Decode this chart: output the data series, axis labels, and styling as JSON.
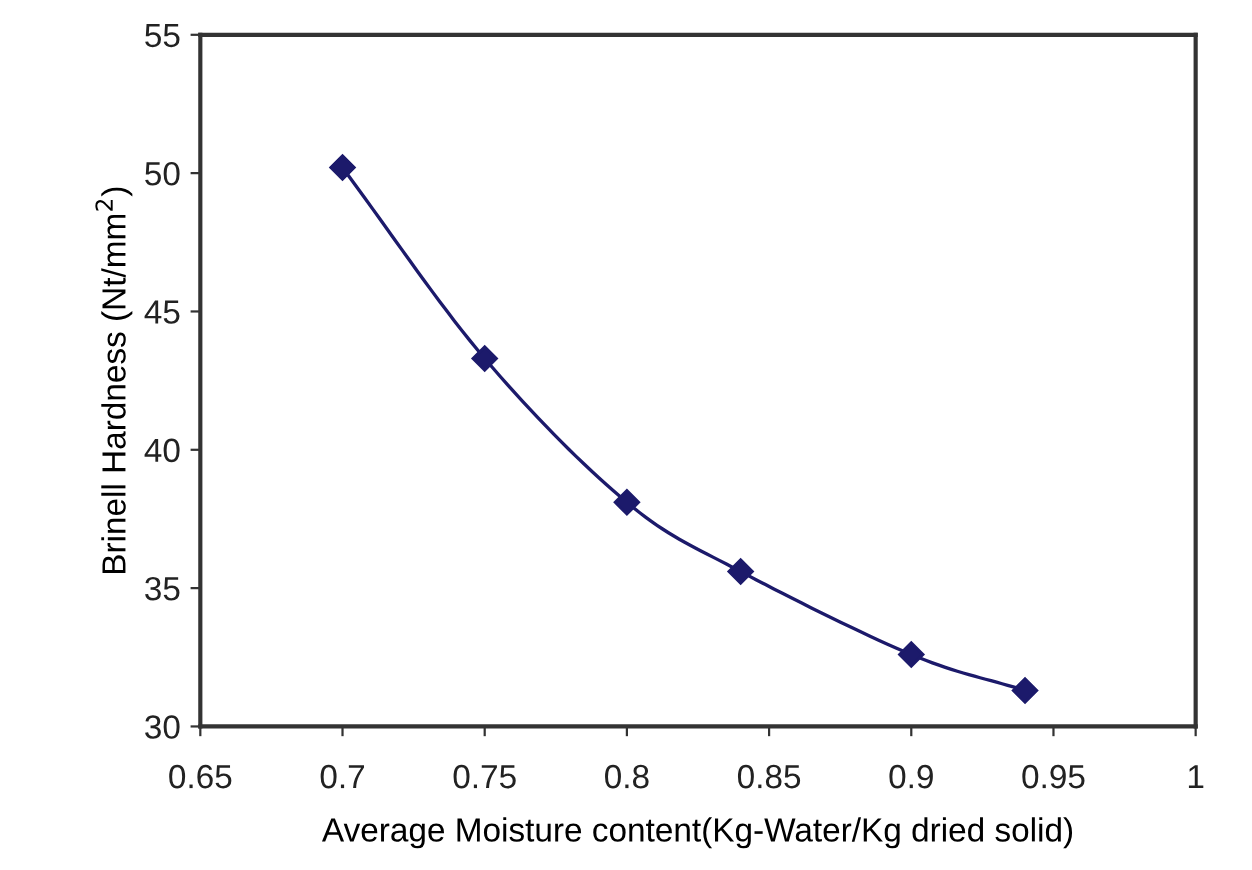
{
  "chart_data": {
    "type": "line",
    "xlabel": "Average Moisture content(Kg-Water/Kg dried solid)",
    "ylabel": "Brinell Hardness (Nt/mm$^{2}$)",
    "x": [
      0.7,
      0.75,
      0.8,
      0.84,
      0.9,
      0.94
    ],
    "series": [
      {
        "color": "#1c1a6b",
        "values": [
          50.2,
          43.3,
          38.1,
          35.6,
          32.6,
          31.3
        ]
      }
    ],
    "xlim": [
      0.65,
      1
    ],
    "xticks": [
      0.65,
      0.7,
      0.75,
      0.8,
      0.85,
      0.9,
      0.95,
      1
    ],
    "ylim": [
      30,
      55
    ],
    "yticks": [
      30,
      35,
      40,
      45,
      50,
      55
    ],
    "marker": "diamond",
    "line_style": "solid",
    "grid": false,
    "legend": false
  }
}
